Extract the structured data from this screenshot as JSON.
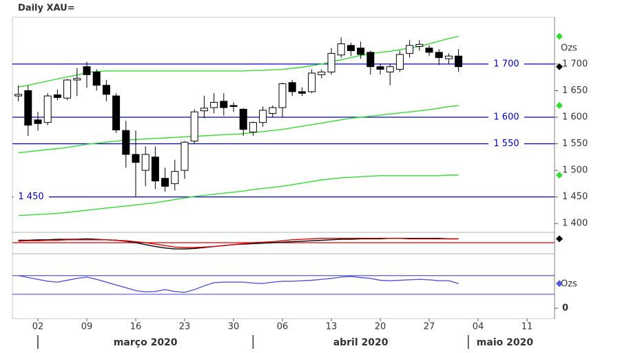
{
  "chart_data": {
    "type": "candlestick",
    "title": "Daily XAU=",
    "x": [
      "2020-02-27",
      "2020-02-28",
      "2020-03-02",
      "2020-03-03",
      "2020-03-04",
      "2020-03-05",
      "2020-03-06",
      "2020-03-09",
      "2020-03-10",
      "2020-03-11",
      "2020-03-12",
      "2020-03-13",
      "2020-03-16",
      "2020-03-17",
      "2020-03-18",
      "2020-03-19",
      "2020-03-20",
      "2020-03-23",
      "2020-03-24",
      "2020-03-25",
      "2020-03-26",
      "2020-03-27",
      "2020-03-30",
      "2020-03-31",
      "2020-04-01",
      "2020-04-02",
      "2020-04-03",
      "2020-04-06",
      "2020-04-07",
      "2020-04-08",
      "2020-04-09",
      "2020-04-10",
      "2020-04-13",
      "2020-04-14",
      "2020-04-15",
      "2020-04-16",
      "2020-04-17",
      "2020-04-20",
      "2020-04-21",
      "2020-04-22",
      "2020-04-23",
      "2020-04-24",
      "2020-04-27",
      "2020-04-28",
      "2020-04-29",
      "2020-04-30"
    ],
    "open": [
      1640,
      1650,
      1595,
      1590,
      1642,
      1636,
      1670,
      1695,
      1685,
      1660,
      1640,
      1575,
      1530,
      1500,
      1525,
      1485,
      1475,
      1500,
      1555,
      1612,
      1618,
      1630,
      1622,
      1615,
      1572,
      1590,
      1607,
      1618,
      1665,
      1648,
      1648,
      1680,
      1685,
      1717,
      1735,
      1730,
      1722,
      1695,
      1685,
      1690,
      1720,
      1733,
      1730,
      1722,
      1710,
      1715
    ],
    "high": [
      1660,
      1660,
      1610,
      1645,
      1652,
      1672,
      1692,
      1704,
      1690,
      1670,
      1645,
      1593,
      1575,
      1545,
      1545,
      1505,
      1520,
      1555,
      1615,
      1640,
      1645,
      1645,
      1628,
      1617,
      1592,
      1620,
      1622,
      1665,
      1670,
      1656,
      1690,
      1690,
      1730,
      1750,
      1740,
      1742,
      1725,
      1700,
      1700,
      1725,
      1745,
      1745,
      1735,
      1728,
      1720,
      1728
    ],
    "low": [
      1630,
      1565,
      1575,
      1585,
      1632,
      1632,
      1640,
      1655,
      1650,
      1630,
      1570,
      1505,
      1450,
      1470,
      1465,
      1460,
      1462,
      1484,
      1550,
      1598,
      1607,
      1603,
      1610,
      1565,
      1565,
      1582,
      1600,
      1600,
      1640,
      1640,
      1645,
      1673,
      1680,
      1712,
      1715,
      1710,
      1680,
      1680,
      1660,
      1685,
      1712,
      1725,
      1715,
      1698,
      1700,
      1685
    ],
    "close": [
      1643,
      1585,
      1588,
      1640,
      1637,
      1670,
      1673,
      1680,
      1660,
      1643,
      1576,
      1530,
      1515,
      1530,
      1480,
      1470,
      1498,
      1553,
      1610,
      1617,
      1628,
      1618,
      1620,
      1577,
      1590,
      1613,
      1618,
      1663,
      1648,
      1645,
      1683,
      1685,
      1720,
      1738,
      1725,
      1718,
      1695,
      1690,
      1695,
      1718,
      1735,
      1737,
      1722,
      1712,
      1715,
      1695
    ],
    "up_color": "#ffffff",
    "down_color": "#000000",
    "ylim": [
      1386,
      1788
    ],
    "yticks": [
      {
        "value": 1400,
        "label": "1 400"
      },
      {
        "value": 1450,
        "label": "1 450"
      },
      {
        "value": 1500,
        "label": "1 500"
      },
      {
        "value": 1550,
        "label": "1 550"
      },
      {
        "value": 1600,
        "label": "1 600"
      },
      {
        "value": 1650,
        "label": "1 650"
      },
      {
        "value": 1700,
        "label": "1 700"
      }
    ],
    "y_unit": "Ozs",
    "levels": [
      {
        "value": 1700,
        "label": "1 700",
        "label_position": "right"
      },
      {
        "value": 1600,
        "label": "1 600",
        "label_position": "right"
      },
      {
        "value": 1550,
        "label": "1 550",
        "label_position": "right"
      },
      {
        "value": 1450,
        "label": "1 450",
        "label_position": "left"
      }
    ],
    "level_color": "#0000cc",
    "series": [
      {
        "color": "#33dd33",
        "values": [
          1657,
          1660,
          1664,
          1668,
          1672,
          1676,
          1679,
          1684,
          1686,
          1687,
          1687,
          1687,
          1687,
          1687,
          1687,
          1687,
          1687,
          1687,
          1687,
          1687,
          1687,
          1687,
          1687,
          1687,
          1688,
          1688,
          1689,
          1690,
          1692,
          1694,
          1697,
          1700,
          1704,
          1708,
          1712,
          1716,
          1719,
          1722,
          1724,
          1727,
          1730,
          1733,
          1738,
          1743,
          1748,
          1752
        ]
      },
      {
        "color": "#33dd33",
        "values": [
          1533,
          1535,
          1537,
          1539,
          1541,
          1543,
          1546,
          1549,
          1551,
          1553,
          1555,
          1557,
          1558,
          1559,
          1560,
          1561,
          1562,
          1563,
          1564,
          1565,
          1566,
          1567,
          1568,
          1569,
          1571,
          1573,
          1575,
          1577,
          1580,
          1583,
          1586,
          1589,
          1592,
          1595,
          1598,
          1600,
          1602,
          1604,
          1606,
          1608,
          1610,
          1612,
          1614,
          1617,
          1620,
          1622
        ]
      },
      {
        "color": "#33dd33",
        "values": [
          1415,
          1416,
          1417,
          1418,
          1419,
          1421,
          1423,
          1425,
          1427,
          1429,
          1431,
          1433,
          1435,
          1437,
          1439,
          1442,
          1445,
          1448,
          1451,
          1453,
          1455,
          1457,
          1459,
          1461,
          1464,
          1466,
          1468,
          1470,
          1473,
          1476,
          1479,
          1482,
          1484,
          1486,
          1487,
          1488,
          1489,
          1490,
          1490,
          1490,
          1490,
          1490,
          1490,
          1490,
          1491,
          1491
        ]
      }
    ],
    "xticks": [
      {
        "value": "2020-03-02",
        "label": "02"
      },
      {
        "value": "2020-03-09",
        "label": "09"
      },
      {
        "value": "2020-03-16",
        "label": "16"
      },
      {
        "value": "2020-03-23",
        "label": "23"
      },
      {
        "value": "2020-03-30",
        "label": "30"
      },
      {
        "value": "2020-04-06",
        "label": "06"
      },
      {
        "value": "2020-04-13",
        "label": "13"
      },
      {
        "value": "2020-04-20",
        "label": "20"
      },
      {
        "value": "2020-04-27",
        "label": "27"
      },
      {
        "value": "2020-05-04",
        "label": "04"
      },
      {
        "value": "2020-05-11",
        "label": "11"
      }
    ],
    "months": [
      {
        "value": "2020-03-01",
        "label": "março 2020"
      },
      {
        "value": "2020-04-01",
        "label": "abril 2020"
      },
      {
        "value": "2020-05-01",
        "label": "maio 2020"
      }
    ],
    "panels": [
      {
        "ylim": [
          -20,
          20
        ],
        "levels": [
          0
        ],
        "level_color": "#dd0000",
        "series": [
          {
            "color": "#000000",
            "values": [
              5,
              5,
              6,
              6,
              7,
              7,
              7,
              8,
              7,
              6,
              5,
              3,
              0,
              -4,
              -8,
              -11,
              -13,
              -13,
              -12,
              -10,
              -8,
              -6,
              -4,
              -3,
              -2,
              -1,
              0,
              1,
              2,
              3,
              4,
              5,
              6,
              7,
              7,
              8,
              8,
              8,
              9,
              9,
              9,
              9,
              9,
              9,
              8,
              8
            ]
          },
          {
            "color": "#dd0000",
            "values": [
              3,
              4,
              4,
              5,
              5,
              6,
              6,
              6,
              6,
              6,
              5,
              4,
              2,
              0,
              -3,
              -6,
              -9,
              -10,
              -10,
              -9,
              -8,
              -6,
              -4,
              -2,
              0,
              1,
              2,
              4,
              6,
              7,
              8,
              9,
              9,
              9,
              9,
              9,
              9,
              9,
              9,
              9,
              8,
              8,
              8,
              8,
              8,
              8
            ]
          }
        ]
      },
      {
        "ylim": [
          -22,
          111
        ],
        "yticks": [
          0
        ],
        "y_unit": "Ozs",
        "levels": [
          30,
          70
        ],
        "level_color": "#5555dd",
        "series": [
          {
            "color": "#5555dd",
            "values": [
              70,
              66,
              62,
              58,
              56,
              60,
              64,
              67,
              62,
              56,
              50,
              44,
              38,
              35,
              36,
              40,
              36,
              34,
              40,
              48,
              55,
              56,
              56,
              56,
              54,
              53,
              56,
              58,
              58,
              59,
              60,
              62,
              64,
              67,
              68,
              66,
              64,
              60,
              59,
              60,
              61,
              62,
              61,
              59,
              59,
              53
            ]
          }
        ]
      }
    ]
  }
}
